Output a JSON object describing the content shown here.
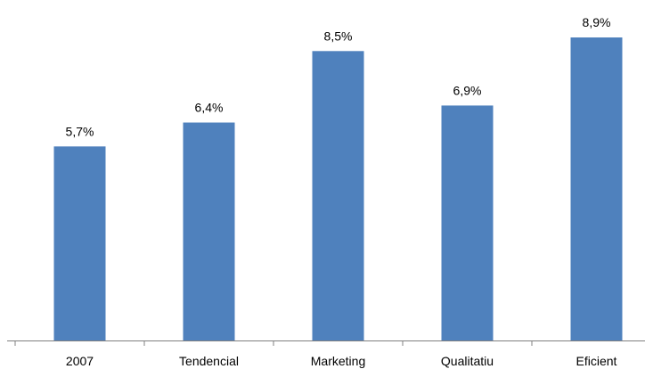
{
  "chart_data": {
    "type": "bar",
    "categories": [
      "2007",
      "Tendencial",
      "Marketing",
      "Qualitatiu",
      "Eficient"
    ],
    "values": [
      5.7,
      6.4,
      8.5,
      6.9,
      8.9
    ],
    "data_labels": [
      "5,7%",
      "6,4%",
      "8,5%",
      "6,9%",
      "8,9%"
    ],
    "ylim": [
      0,
      10
    ],
    "grid": false,
    "legend": "none",
    "title": "",
    "xlabel": "",
    "ylabel": "",
    "colors": {
      "bar": "#4F81BD",
      "axis": "#808080",
      "text": "#000000"
    }
  }
}
